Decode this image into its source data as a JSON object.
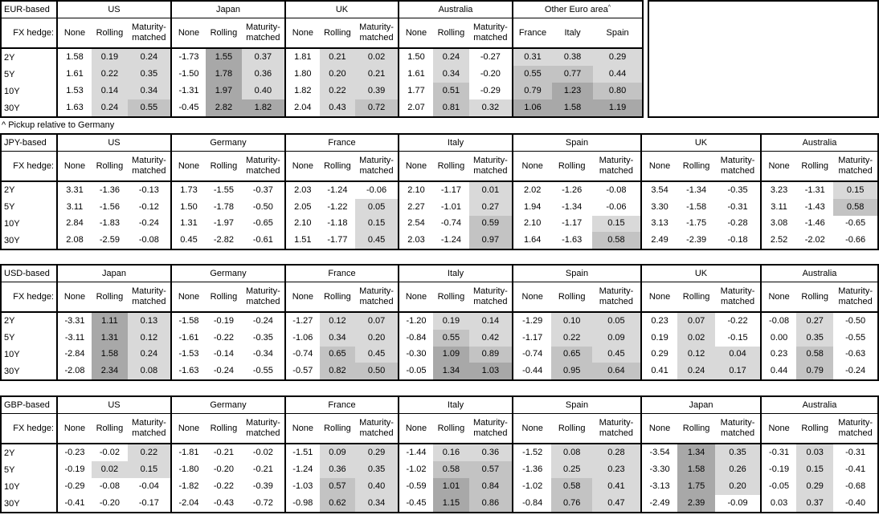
{
  "footnote": "^ Pickup relative to Germany",
  "fx_hedge_label": "FX hedge:",
  "tenors": [
    "2Y",
    "5Y",
    "10Y",
    "30Y"
  ],
  "heat": {
    "light": "#d9d9d9",
    "medium": "#c3c3c3",
    "dark": "#a8a8a8",
    "thresholds": [
      0.5,
      1.0
    ]
  },
  "tables": [
    {
      "base": "EUR-based",
      "groups": [
        {
          "name": "US",
          "cols": [
            "None",
            "Rolling",
            "Maturity-matched"
          ],
          "heat_cols": [
            1,
            2
          ],
          "rows": [
            [
              "1.58",
              "0.19",
              "0.24"
            ],
            [
              "1.61",
              "0.22",
              "0.35"
            ],
            [
              "1.53",
              "0.14",
              "0.34"
            ],
            [
              "1.63",
              "0.24",
              "0.55"
            ]
          ]
        },
        {
          "name": "Japan",
          "cols": [
            "None",
            "Rolling",
            "Maturity-matched"
          ],
          "heat_cols": [
            1,
            2
          ],
          "rows": [
            [
              "-1.73",
              "1.55",
              "0.37"
            ],
            [
              "-1.50",
              "1.78",
              "0.36"
            ],
            [
              "-1.31",
              "1.97",
              "0.40"
            ],
            [
              "-0.45",
              "2.82",
              "1.82"
            ]
          ]
        },
        {
          "name": "UK",
          "cols": [
            "None",
            "Rolling",
            "Maturity-matched"
          ],
          "heat_cols": [
            1,
            2
          ],
          "rows": [
            [
              "1.81",
              "0.21",
              "0.02"
            ],
            [
              "1.80",
              "0.20",
              "0.21"
            ],
            [
              "1.82",
              "0.22",
              "0.39"
            ],
            [
              "2.04",
              "0.43",
              "0.72"
            ]
          ]
        },
        {
          "name": "Australia",
          "cols": [
            "None",
            "Rolling",
            "Maturity-matched"
          ],
          "heat_cols": [
            1,
            2
          ],
          "rows": [
            [
              "1.50",
              "0.24",
              "-0.27"
            ],
            [
              "1.61",
              "0.34",
              "-0.20"
            ],
            [
              "1.77",
              "0.51",
              "-0.29"
            ],
            [
              "2.07",
              "0.81",
              "0.32"
            ]
          ]
        },
        {
          "name": "Other Euro area",
          "sup": "^",
          "cols": [
            "France",
            "Italy",
            "Spain"
          ],
          "heat_cols": [
            0,
            1,
            2
          ],
          "rows": [
            [
              "0.31",
              "0.38",
              "0.29"
            ],
            [
              "0.55",
              "0.77",
              "0.44"
            ],
            [
              "0.79",
              "1.23",
              "0.80"
            ],
            [
              "1.06",
              "1.58",
              "1.19"
            ]
          ]
        }
      ]
    },
    {
      "base": "JPY-based",
      "groups": [
        {
          "name": "US",
          "cols": [
            "None",
            "Rolling",
            "Maturity-matched"
          ],
          "heat_cols": [
            1,
            2
          ],
          "rows": [
            [
              "3.31",
              "-1.36",
              "-0.13"
            ],
            [
              "3.11",
              "-1.56",
              "-0.12"
            ],
            [
              "2.84",
              "-1.83",
              "-0.24"
            ],
            [
              "2.08",
              "-2.59",
              "-0.08"
            ]
          ]
        },
        {
          "name": "Germany",
          "cols": [
            "None",
            "Rolling",
            "Maturity-matched"
          ],
          "heat_cols": [
            1,
            2
          ],
          "rows": [
            [
              "1.73",
              "-1.55",
              "-0.37"
            ],
            [
              "1.50",
              "-1.78",
              "-0.50"
            ],
            [
              "1.31",
              "-1.97",
              "-0.65"
            ],
            [
              "0.45",
              "-2.82",
              "-0.61"
            ]
          ]
        },
        {
          "name": "France",
          "cols": [
            "None",
            "Rolling",
            "Maturity-matched"
          ],
          "heat_cols": [
            1,
            2
          ],
          "rows": [
            [
              "2.03",
              "-1.24",
              "-0.06"
            ],
            [
              "2.05",
              "-1.22",
              "0.05"
            ],
            [
              "2.10",
              "-1.18",
              "0.15"
            ],
            [
              "1.51",
              "-1.77",
              "0.45"
            ]
          ]
        },
        {
          "name": "Italy",
          "cols": [
            "None",
            "Rolling",
            "Maturity-matched"
          ],
          "heat_cols": [
            1,
            2
          ],
          "rows": [
            [
              "2.10",
              "-1.17",
              "0.01"
            ],
            [
              "2.27",
              "-1.01",
              "0.27"
            ],
            [
              "2.54",
              "-0.74",
              "0.59"
            ],
            [
              "2.03",
              "-1.24",
              "0.97"
            ]
          ]
        },
        {
          "name": "Spain",
          "cols": [
            "None",
            "Rolling",
            "Maturity-matched"
          ],
          "heat_cols": [
            1,
            2
          ],
          "rows": [
            [
              "2.02",
              "-1.26",
              "-0.08"
            ],
            [
              "1.94",
              "-1.34",
              "-0.06"
            ],
            [
              "2.10",
              "-1.17",
              "0.15"
            ],
            [
              "1.64",
              "-1.63",
              "0.58"
            ]
          ]
        },
        {
          "name": "UK",
          "cols": [
            "None",
            "Rolling",
            "Maturity-matched"
          ],
          "heat_cols": [
            1,
            2
          ],
          "rows": [
            [
              "3.54",
              "-1.34",
              "-0.35"
            ],
            [
              "3.30",
              "-1.58",
              "-0.31"
            ],
            [
              "3.13",
              "-1.75",
              "-0.28"
            ],
            [
              "2.49",
              "-2.39",
              "-0.18"
            ]
          ]
        },
        {
          "name": "Australia",
          "cols": [
            "None",
            "Rolling",
            "Maturity-matched"
          ],
          "heat_cols": [
            1,
            2
          ],
          "rows": [
            [
              "3.23",
              "-1.31",
              "0.15"
            ],
            [
              "3.11",
              "-1.43",
              "0.58"
            ],
            [
              "3.08",
              "-1.46",
              "-0.65"
            ],
            [
              "2.52",
              "-2.02",
              "-0.66"
            ]
          ]
        }
      ]
    },
    {
      "base": "USD-based",
      "groups": [
        {
          "name": "Japan",
          "cols": [
            "None",
            "Rolling",
            "Maturity-matched"
          ],
          "heat_cols": [
            1,
            2
          ],
          "rows": [
            [
              "-3.31",
              "1.11",
              "0.13"
            ],
            [
              "-3.11",
              "1.31",
              "0.12"
            ],
            [
              "-2.84",
              "1.58",
              "0.24"
            ],
            [
              "-2.08",
              "2.34",
              "0.08"
            ]
          ]
        },
        {
          "name": "Germany",
          "cols": [
            "None",
            "Rolling",
            "Maturity-matched"
          ],
          "heat_cols": [
            1,
            2
          ],
          "rows": [
            [
              "-1.58",
              "-0.19",
              "-0.24"
            ],
            [
              "-1.61",
              "-0.22",
              "-0.35"
            ],
            [
              "-1.53",
              "-0.14",
              "-0.34"
            ],
            [
              "-1.63",
              "-0.24",
              "-0.55"
            ]
          ]
        },
        {
          "name": "France",
          "cols": [
            "None",
            "Rolling",
            "Maturity-matched"
          ],
          "heat_cols": [
            1,
            2
          ],
          "rows": [
            [
              "-1.27",
              "0.12",
              "0.07"
            ],
            [
              "-1.06",
              "0.34",
              "0.20"
            ],
            [
              "-0.74",
              "0.65",
              "0.45"
            ],
            [
              "-0.57",
              "0.82",
              "0.50"
            ]
          ]
        },
        {
          "name": "Italy",
          "cols": [
            "None",
            "Rolling",
            "Maturity-matched"
          ],
          "heat_cols": [
            1,
            2
          ],
          "rows": [
            [
              "-1.20",
              "0.19",
              "0.14"
            ],
            [
              "-0.84",
              "0.55",
              "0.42"
            ],
            [
              "-0.30",
              "1.09",
              "0.89"
            ],
            [
              "-0.05",
              "1.34",
              "1.03"
            ]
          ]
        },
        {
          "name": "Spain",
          "cols": [
            "None",
            "Rolling",
            "Maturity-matched"
          ],
          "heat_cols": [
            1,
            2
          ],
          "rows": [
            [
              "-1.29",
              "0.10",
              "0.05"
            ],
            [
              "-1.17",
              "0.22",
              "0.09"
            ],
            [
              "-0.74",
              "0.65",
              "0.45"
            ],
            [
              "-0.44",
              "0.95",
              "0.64"
            ]
          ]
        },
        {
          "name": "UK",
          "cols": [
            "None",
            "Rolling",
            "Maturity-matched"
          ],
          "heat_cols": [
            1,
            2
          ],
          "rows": [
            [
              "0.23",
              "0.07",
              "-0.22"
            ],
            [
              "0.19",
              "0.02",
              "-0.15"
            ],
            [
              "0.29",
              "0.12",
              "0.04"
            ],
            [
              "0.41",
              "0.24",
              "0.17"
            ]
          ]
        },
        {
          "name": "Australia",
          "cols": [
            "None",
            "Rolling",
            "Maturity-matched"
          ],
          "heat_cols": [
            1,
            2
          ],
          "rows": [
            [
              "-0.08",
              "0.27",
              "-0.50"
            ],
            [
              "0.00",
              "0.35",
              "-0.55"
            ],
            [
              "0.23",
              "0.58",
              "-0.63"
            ],
            [
              "0.44",
              "0.79",
              "-0.24"
            ]
          ]
        }
      ]
    },
    {
      "base": "GBP-based",
      "groups": [
        {
          "name": "US",
          "cols": [
            "None",
            "Rolling",
            "Maturity-matched"
          ],
          "heat_cols": [
            1,
            2
          ],
          "rows": [
            [
              "-0.23",
              "-0.02",
              "0.22"
            ],
            [
              "-0.19",
              "0.02",
              "0.15"
            ],
            [
              "-0.29",
              "-0.08",
              "-0.04"
            ],
            [
              "-0.41",
              "-0.20",
              "-0.17"
            ]
          ]
        },
        {
          "name": "Germany",
          "cols": [
            "None",
            "Rolling",
            "Maturity-matched"
          ],
          "heat_cols": [
            1,
            2
          ],
          "rows": [
            [
              "-1.81",
              "-0.21",
              "-0.02"
            ],
            [
              "-1.80",
              "-0.20",
              "-0.21"
            ],
            [
              "-1.82",
              "-0.22",
              "-0.39"
            ],
            [
              "-2.04",
              "-0.43",
              "-0.72"
            ]
          ]
        },
        {
          "name": "France",
          "cols": [
            "None",
            "Rolling",
            "Maturity-matched"
          ],
          "heat_cols": [
            1,
            2
          ],
          "rows": [
            [
              "-1.51",
              "0.09",
              "0.29"
            ],
            [
              "-1.24",
              "0.36",
              "0.35"
            ],
            [
              "-1.03",
              "0.57",
              "0.40"
            ],
            [
              "-0.98",
              "0.62",
              "0.34"
            ]
          ]
        },
        {
          "name": "Italy",
          "cols": [
            "None",
            "Rolling",
            "Maturity-matched"
          ],
          "heat_cols": [
            1,
            2
          ],
          "rows": [
            [
              "-1.44",
              "0.16",
              "0.36"
            ],
            [
              "-1.02",
              "0.58",
              "0.57"
            ],
            [
              "-0.59",
              "1.01",
              "0.84"
            ],
            [
              "-0.45",
              "1.15",
              "0.86"
            ]
          ]
        },
        {
          "name": "Spain",
          "cols": [
            "None",
            "Rolling",
            "Maturity-matched"
          ],
          "heat_cols": [
            1,
            2
          ],
          "rows": [
            [
              "-1.52",
              "0.08",
              "0.28"
            ],
            [
              "-1.36",
              "0.25",
              "0.23"
            ],
            [
              "-1.02",
              "0.58",
              "0.41"
            ],
            [
              "-0.84",
              "0.76",
              "0.47"
            ]
          ]
        },
        {
          "name": "Japan",
          "cols": [
            "None",
            "Rolling",
            "Maturity-matched"
          ],
          "heat_cols": [
            1,
            2
          ],
          "rows": [
            [
              "-3.54",
              "1.34",
              "0.35"
            ],
            [
              "-3.30",
              "1.58",
              "0.26"
            ],
            [
              "-3.13",
              "1.75",
              "0.20"
            ],
            [
              "-2.49",
              "2.39",
              "-0.09"
            ]
          ]
        },
        {
          "name": "Australia",
          "cols": [
            "None",
            "Rolling",
            "Maturity-matched"
          ],
          "heat_cols": [
            1,
            2
          ],
          "rows": [
            [
              "-0.31",
              "0.03",
              "-0.31"
            ],
            [
              "-0.19",
              "0.15",
              "-0.41"
            ],
            [
              "-0.05",
              "0.29",
              "-0.68"
            ],
            [
              "0.03",
              "0.37",
              "-0.40"
            ]
          ]
        }
      ]
    }
  ]
}
